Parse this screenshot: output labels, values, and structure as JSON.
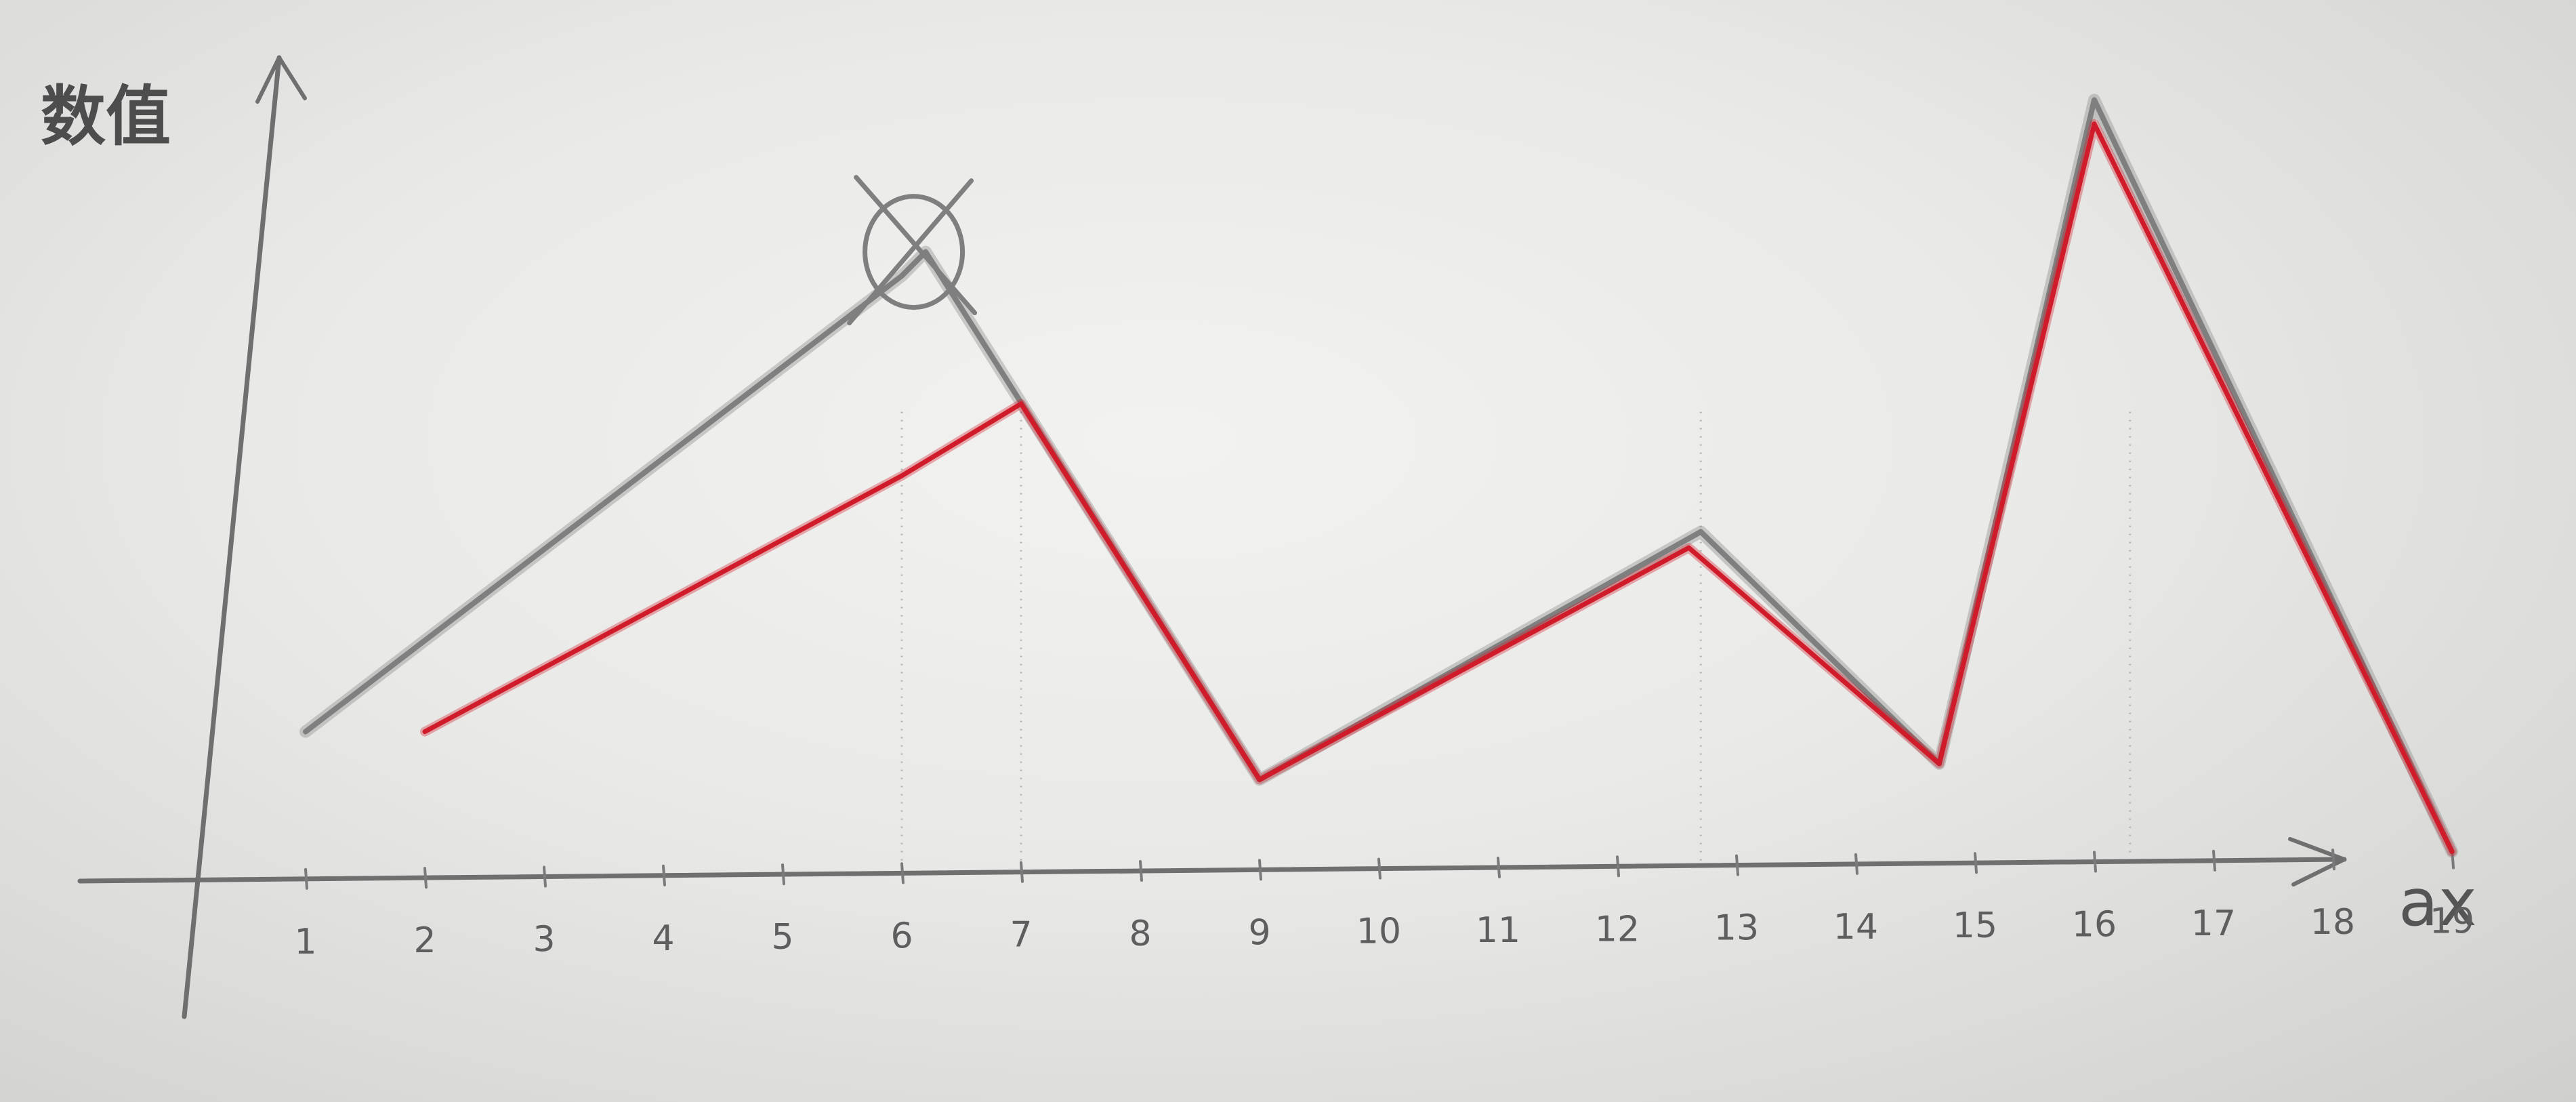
{
  "chart_data": {
    "type": "line",
    "title": "",
    "ylabel": "数值",
    "xlabel": "ax",
    "x": [
      1,
      2,
      3,
      4,
      5,
      6,
      7,
      8,
      9,
      10,
      11,
      12,
      13,
      14,
      15,
      16,
      17,
      18,
      19
    ],
    "xlim": [
      0,
      19.5
    ],
    "ylim": [
      0,
      10
    ],
    "grid": false,
    "series": [
      {
        "color": "#d01c2a",
        "points": [
          {
            "x": 2,
            "y": 1.8
          },
          {
            "x": 6,
            "y": 5.0
          },
          {
            "x": 7,
            "y": 5.9
          },
          {
            "x": 9,
            "y": 1.2
          },
          {
            "x": 12.6,
            "y": 4.1
          },
          {
            "x": 14.7,
            "y": 1.4
          },
          {
            "x": 16,
            "y": 9.4
          },
          {
            "x": 19,
            "y": 0.3
          }
        ]
      },
      {
        "color": "#7f7f7f",
        "points": [
          {
            "x": 1,
            "y": 1.8
          },
          {
            "x": 6,
            "y": 7.5
          },
          {
            "x": 6.2,
            "y": 7.8
          },
          {
            "x": 9,
            "y": 1.2
          },
          {
            "x": 12.7,
            "y": 4.3
          },
          {
            "x": 14.7,
            "y": 1.4
          },
          {
            "x": 16,
            "y": 9.7
          },
          {
            "x": 19,
            "y": 0.3
          }
        ]
      }
    ],
    "annotations": [
      {
        "type": "crossed-circle",
        "x": 6.1,
        "y": 7.8,
        "color": "#7f7f7f"
      }
    ],
    "colors": {
      "axis": "#6f6f6f",
      "red_series": "#d01c2a",
      "pencil_series": "#7f7f7f"
    }
  }
}
